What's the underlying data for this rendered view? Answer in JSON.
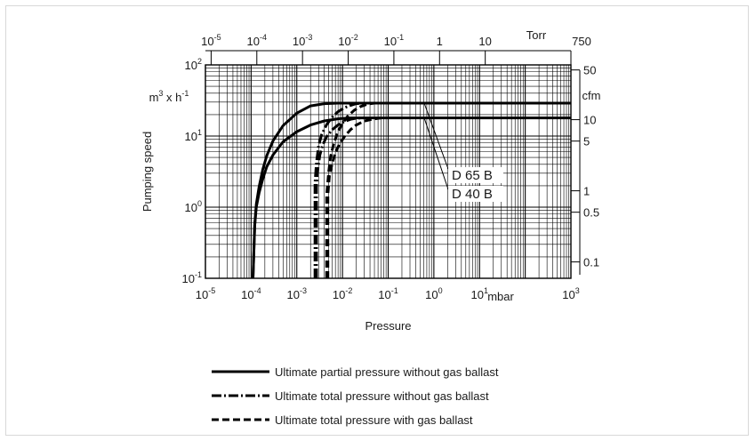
{
  "chart_data": {
    "type": "line",
    "xscale": "log",
    "yscale": "log",
    "xlim": [
      1e-05,
      1000
    ],
    "ylim": [
      0.1,
      100
    ],
    "xlabel": "Pressure",
    "ylabel": "Pumping speed",
    "x_unit": "mbar",
    "y_unit": "m³ x h⁻¹",
    "x_ticks": [
      {
        "base": "10",
        "exp": "-5"
      },
      {
        "base": "10",
        "exp": "-4"
      },
      {
        "base": "10",
        "exp": "-3"
      },
      {
        "base": "10",
        "exp": "-2"
      },
      {
        "base": "10",
        "exp": "-1"
      },
      {
        "base": "10",
        "exp": "0"
      },
      {
        "base": "10",
        "exp": "1"
      },
      {
        "base": "10",
        "exp": "3"
      }
    ],
    "y_ticks": [
      {
        "base": "10",
        "exp": "2"
      },
      {
        "base": "10",
        "exp": "1"
      },
      {
        "base": "10",
        "exp": "0"
      },
      {
        "base": "10",
        "exp": "-1"
      }
    ],
    "top_axis": {
      "unit": "Torr",
      "ticks": [
        {
          "base": "10",
          "exp": "-5"
        },
        {
          "base": "10",
          "exp": "-4"
        },
        {
          "base": "10",
          "exp": "-3"
        },
        {
          "base": "10",
          "exp": "-2"
        },
        {
          "base": "10",
          "exp": "-1"
        },
        {
          "base": "1",
          "exp": ""
        },
        {
          "base": "10",
          "exp": ""
        },
        {
          "base": "750",
          "exp": ""
        }
      ]
    },
    "right_axis": {
      "unit": "cfm",
      "ticks": [
        "50",
        "10",
        "5",
        "1",
        "0.5",
        "0.1"
      ]
    },
    "curve_labels": [
      "D 65 B",
      "D 40 B"
    ],
    "legend_position": "bottom",
    "series": [
      {
        "name": "Ultimate partial pressure without gas ballast",
        "style": "solid",
        "model": "D 65 B",
        "x": [
          0.00011,
          0.00012,
          0.00013,
          0.00015,
          0.00018,
          0.00022,
          0.0003,
          0.0005,
          0.001,
          0.002,
          0.004,
          0.008,
          0.1,
          1,
          10,
          100,
          1000
        ],
        "y": [
          0.1,
          0.55,
          1.1,
          1.95,
          3.4,
          5.3,
          8.5,
          14,
          21,
          26.5,
          28.5,
          29,
          29,
          29,
          29,
          29,
          29
        ]
      },
      {
        "name": "Ultimate partial pressure without gas ballast",
        "style": "solid",
        "model": "D 40 B",
        "x": [
          0.00011,
          0.00012,
          0.00013,
          0.00015,
          0.00018,
          0.00022,
          0.0003,
          0.0005,
          0.001,
          0.002,
          0.004,
          0.008,
          0.015,
          0.1,
          1,
          10,
          100,
          1000
        ],
        "y": [
          0.1,
          0.55,
          1.0,
          1.6,
          2.5,
          3.7,
          5.4,
          8.3,
          11.5,
          14.3,
          16.3,
          17.5,
          18,
          18,
          18,
          18,
          18,
          18
        ]
      },
      {
        "name": "Ultimate total pressure without gas ballast",
        "style": "dashdot",
        "model": "D 65 B",
        "x": [
          0.0025,
          0.0025,
          0.0027,
          0.003,
          0.0035,
          0.0045,
          0.006,
          0.008,
          0.011,
          0.015,
          0.02,
          0.03
        ],
        "y": [
          0.1,
          2.2,
          4.3,
          7.3,
          10.5,
          14.5,
          18.5,
          22,
          25,
          27,
          28.5,
          29
        ]
      },
      {
        "name": "Ultimate total pressure without gas ballast",
        "style": "dashdot",
        "model": "D 40 B",
        "x": [
          0.0027,
          0.0027,
          0.0029,
          0.0032,
          0.0037,
          0.0045,
          0.006,
          0.008,
          0.011,
          0.015,
          0.02,
          0.03
        ],
        "y": [
          0.1,
          2.0,
          3.5,
          5.4,
          7.5,
          9.8,
          12.3,
          14.3,
          16,
          17.2,
          17.8,
          18
        ]
      },
      {
        "name": "Ultimate total pressure with gas ballast",
        "style": "dashed",
        "model": "D 65 B",
        "x": [
          0.0045,
          0.0045,
          0.005,
          0.0055,
          0.0065,
          0.008,
          0.01,
          0.013,
          0.018,
          0.025,
          0.035,
          0.05
        ],
        "y": [
          0.1,
          1.5,
          3.2,
          5.2,
          8,
          11.5,
          15,
          19,
          23,
          26,
          28,
          29
        ]
      },
      {
        "name": "Ultimate total pressure with gas ballast",
        "style": "dashed",
        "model": "D 40 B",
        "x": [
          0.0048,
          0.0048,
          0.0052,
          0.006,
          0.007,
          0.0085,
          0.011,
          0.015,
          0.02,
          0.03,
          0.045,
          0.07
        ],
        "y": [
          0.1,
          1.5,
          2.8,
          4.2,
          5.8,
          7.6,
          9.8,
          12.3,
          14.3,
          16.2,
          17.3,
          18
        ]
      }
    ],
    "legend": [
      {
        "style": "solid",
        "label": "Ultimate partial pressure without gas ballast"
      },
      {
        "style": "dashdot",
        "label": "Ultimate total pressure without gas ballast"
      },
      {
        "style": "dashed",
        "label": "Ultimate total pressure with gas ballast"
      }
    ]
  }
}
